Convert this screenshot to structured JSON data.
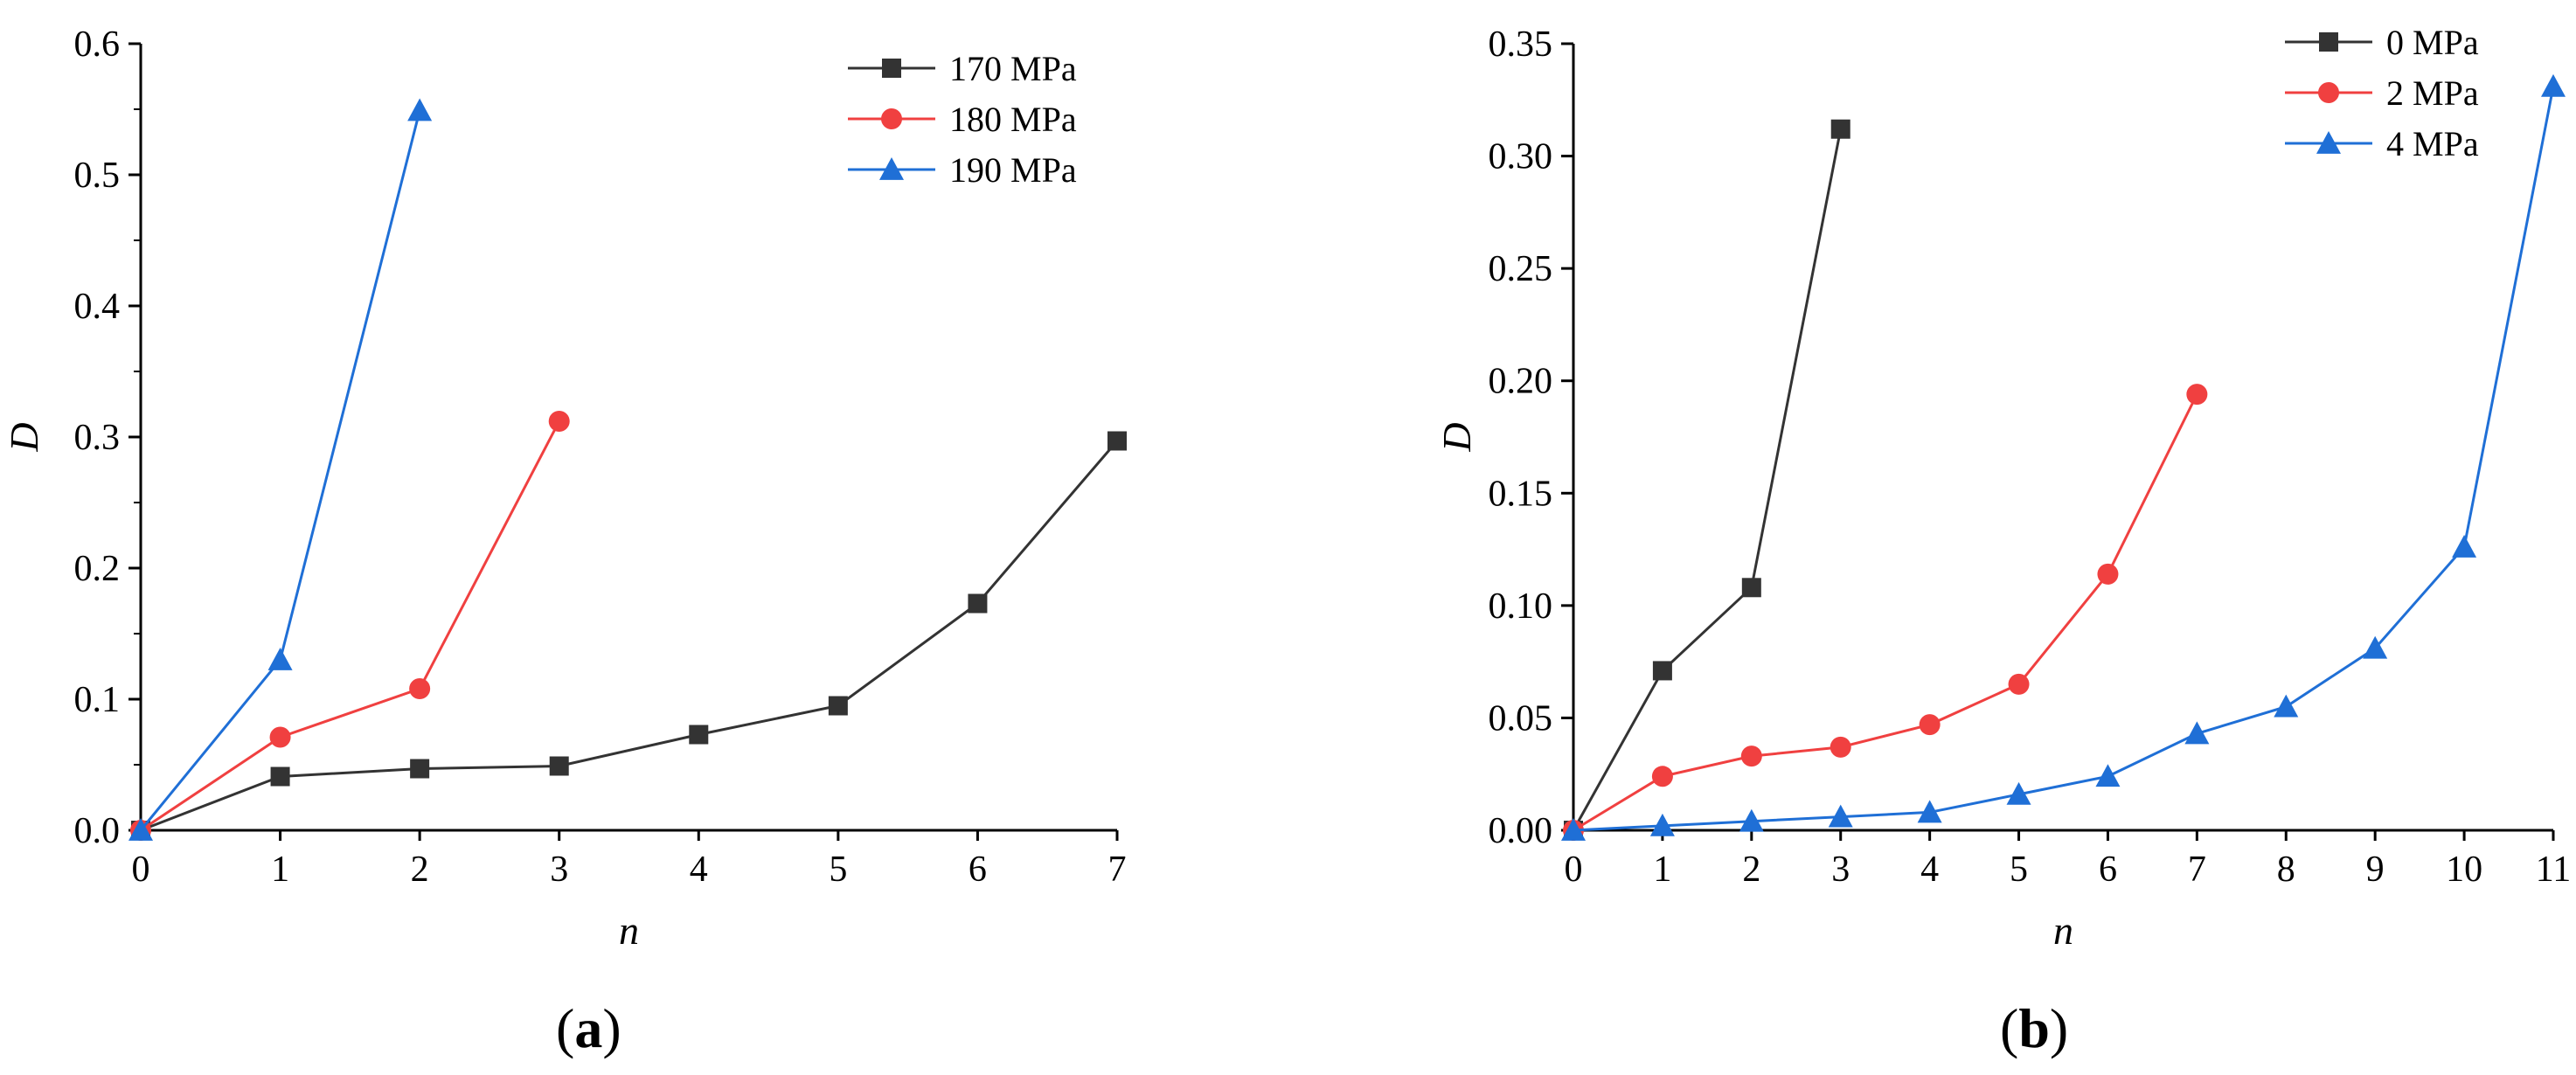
{
  "chart_data": [
    {
      "type": "line",
      "panel_label": "a",
      "xlabel": "n",
      "ylabel": "D",
      "xlim": [
        0,
        7
      ],
      "ylim": [
        0,
        0.6
      ],
      "x_ticks": [
        "0",
        "1",
        "2",
        "3",
        "4",
        "5",
        "6",
        "7"
      ],
      "y_ticks": [
        "0.0",
        "0.1",
        "0.2",
        "0.3",
        "0.4",
        "0.5",
        "0.6"
      ],
      "legend_position": "top-right",
      "series": [
        {
          "name": "170 MPa",
          "color": "#333333",
          "marker": "square",
          "x": [
            0,
            1,
            2,
            3,
            4,
            5,
            6,
            7
          ],
          "values": [
            0,
            0.041,
            0.047,
            0.049,
            0.073,
            0.095,
            0.173,
            0.297
          ]
        },
        {
          "name": "180 MPa",
          "color": "#f04040",
          "marker": "circle",
          "x": [
            0,
            1,
            2,
            3
          ],
          "values": [
            0,
            0.071,
            0.108,
            0.312
          ]
        },
        {
          "name": "190 MPa",
          "color": "#1f6fd6",
          "marker": "triangle",
          "x": [
            0,
            1,
            2
          ],
          "values": [
            0,
            0.13,
            0.549
          ]
        }
      ]
    },
    {
      "type": "line",
      "panel_label": "b",
      "xlabel": "n",
      "ylabel": "D",
      "xlim": [
        0,
        11
      ],
      "ylim": [
        0,
        0.35
      ],
      "x_ticks": [
        "0",
        "1",
        "2",
        "3",
        "4",
        "5",
        "6",
        "7",
        "8",
        "9",
        "10",
        "11"
      ],
      "y_ticks": [
        "0.00",
        "0.05",
        "0.10",
        "0.15",
        "0.20",
        "0.25",
        "0.30",
        "0.35"
      ],
      "legend_position": "top-right",
      "series": [
        {
          "name": "0 MPa",
          "color": "#333333",
          "marker": "square",
          "x": [
            0,
            1,
            2,
            3
          ],
          "values": [
            0,
            0.071,
            0.108,
            0.312
          ]
        },
        {
          "name": "2 MPa",
          "color": "#f04040",
          "marker": "circle",
          "x": [
            0,
            1,
            2,
            3,
            4,
            5,
            6,
            7
          ],
          "values": [
            0,
            0.024,
            0.033,
            0.037,
            0.047,
            0.065,
            0.114,
            0.194
          ]
        },
        {
          "name": "4 MPa",
          "color": "#1f6fd6",
          "marker": "triangle",
          "x": [
            0,
            1,
            2,
            3,
            4,
            5,
            6,
            7,
            8,
            9,
            10,
            11
          ],
          "values": [
            0,
            0.002,
            0.004,
            0.006,
            0.008,
            0.016,
            0.024,
            0.043,
            0.055,
            0.081,
            0.126,
            0.331
          ]
        }
      ]
    }
  ]
}
